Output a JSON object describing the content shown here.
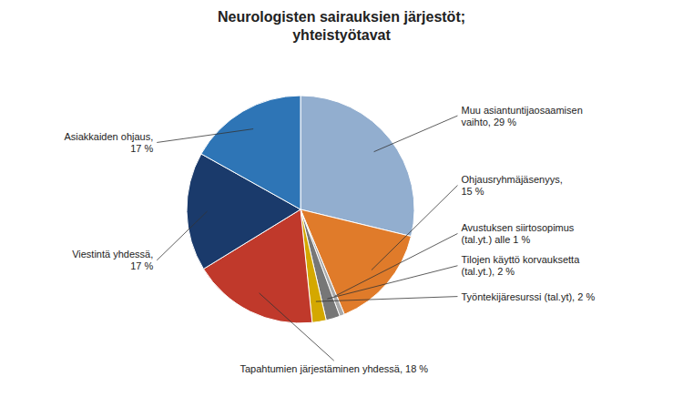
{
  "chart_data": {
    "type": "pie",
    "title": "Neurologisten sairauksien järjestöt;\nyhteistyötavat",
    "categories": [
      "Muu asiantuntijaosaamisen\nvaihto, 29 %",
      "Ohjausryhmäjäsenyys,\n15 %",
      "Avustuksen siirtosopimus\n(tal.yt.) alle 1 %",
      "Tilojen käyttö korvauksetta\n(tal.yt.), 2 %",
      "Työntekijäresurssi (tal.yt), 2 %",
      "Tapahtumien järjestäminen yhdessä, 18 %",
      "Viestintä yhdessä,\n17 %",
      "Asiakkaiden ohjaus,\n17 %"
    ],
    "values": [
      29,
      15,
      0.7,
      2,
      2,
      18,
      17,
      17
    ],
    "colors": [
      "#92AECF",
      "#E07B2A",
      "#AAAAAA",
      "#777777",
      "#D4A800",
      "#C0392B",
      "#1A3A6B",
      "#2E75B6"
    ]
  }
}
